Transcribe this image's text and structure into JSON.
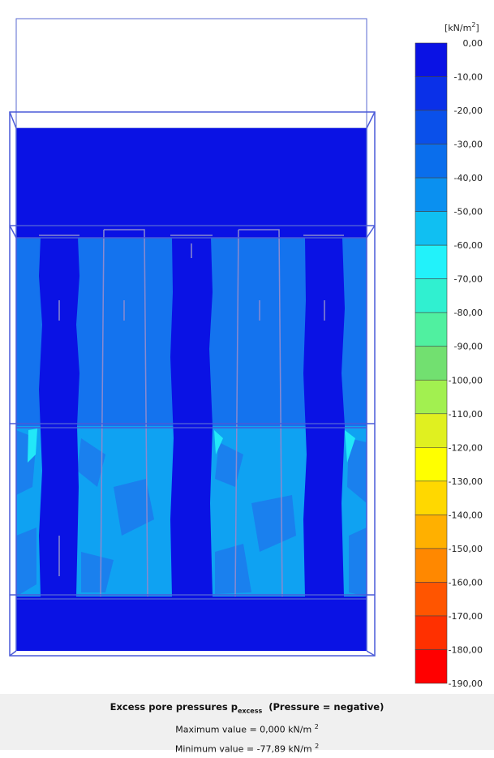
{
  "legend": {
    "unit": {
      "text": "[kN/m",
      "sup": "2",
      "close": "]"
    },
    "labels": [
      "0,00",
      "-10,00",
      "-20,00",
      "-30,00",
      "-40,00",
      "-50,00",
      "-60,00",
      "-70,00",
      "-80,00",
      "-90,00",
      "-100,00",
      "-110,00",
      "-120,00",
      "-130,00",
      "-140,00",
      "-150,00",
      "-160,00",
      "-170,00",
      "-180,00",
      "-190,00"
    ],
    "colors": [
      "#0a12e4",
      "#0a30e8",
      "#0a50ea",
      "#0a6eec",
      "#0a90f0",
      "#10bff2",
      "#22f2fa",
      "#30f0d0",
      "#50f0a0",
      "#72e070",
      "#a2f050",
      "#e0f020",
      "#ffff00",
      "#ffd800",
      "#ffb000",
      "#ff8800",
      "#ff5500",
      "#ff3000",
      "#ff0000"
    ]
  },
  "caption": {
    "title": {
      "main": "Excess pore pressures p",
      "sub": "excess",
      "rest": "(Pressure = negative)"
    },
    "max": {
      "text": "Maximum value = 0,000 kN/m",
      "sup": "2"
    },
    "min": {
      "text": "Minimum value = -77,89 kN/m",
      "sup": "2"
    }
  }
}
